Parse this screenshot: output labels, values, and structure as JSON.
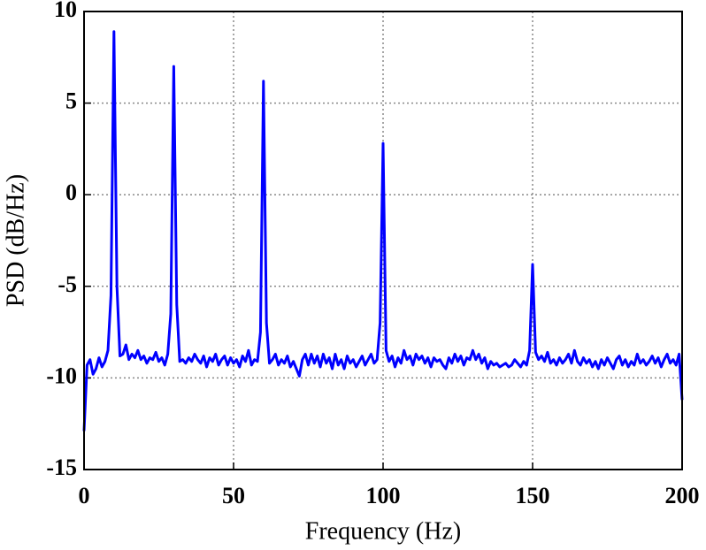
{
  "chart_data": {
    "type": "line",
    "xlabel": "Frequency (Hz)",
    "ylabel": "PSD (dB/Hz)",
    "xlim": [
      0,
      200
    ],
    "xticks": [
      0,
      50,
      100,
      150,
      200
    ],
    "ylim": [
      -15,
      10
    ],
    "yticks": [
      -15,
      -10,
      -5,
      0,
      5,
      10
    ],
    "grid": true,
    "x": [
      0,
      1,
      2,
      3,
      4,
      5,
      6,
      7,
      8,
      9,
      10,
      11,
      12,
      13,
      14,
      15,
      16,
      17,
      18,
      19,
      20,
      21,
      22,
      23,
      24,
      25,
      26,
      27,
      28,
      29,
      30,
      31,
      32,
      33,
      34,
      35,
      36,
      37,
      38,
      39,
      40,
      41,
      42,
      43,
      44,
      45,
      46,
      47,
      48,
      49,
      50,
      51,
      52,
      53,
      54,
      55,
      56,
      57,
      58,
      59,
      60,
      61,
      62,
      63,
      64,
      65,
      66,
      67,
      68,
      69,
      70,
      71,
      72,
      73,
      74,
      75,
      76,
      77,
      78,
      79,
      80,
      81,
      82,
      83,
      84,
      85,
      86,
      87,
      88,
      89,
      90,
      91,
      92,
      93,
      94,
      95,
      96,
      97,
      98,
      99,
      100,
      101,
      102,
      103,
      104,
      105,
      106,
      107,
      108,
      109,
      110,
      111,
      112,
      113,
      114,
      115,
      116,
      117,
      118,
      119,
      120,
      121,
      122,
      123,
      124,
      125,
      126,
      127,
      128,
      129,
      130,
      131,
      132,
      133,
      134,
      135,
      136,
      137,
      138,
      139,
      140,
      141,
      142,
      143,
      144,
      145,
      146,
      147,
      148,
      149,
      150,
      151,
      152,
      153,
      154,
      155,
      156,
      157,
      158,
      159,
      160,
      161,
      162,
      163,
      164,
      165,
      166,
      167,
      168,
      169,
      170,
      171,
      172,
      173,
      174,
      175,
      176,
      177,
      178,
      179,
      180,
      181,
      182,
      183,
      184,
      185,
      186,
      187,
      188,
      189,
      190,
      191,
      192,
      193,
      194,
      195,
      196,
      197,
      198,
      199,
      200
    ],
    "series": [
      {
        "color": "#0000ff",
        "values": [
          -12.9,
          -9.3,
          -9.0,
          -9.8,
          -9.5,
          -8.9,
          -9.4,
          -9.1,
          -8.5,
          -5.5,
          8.9,
          -5.0,
          -8.8,
          -8.7,
          -8.2,
          -9.0,
          -8.7,
          -8.9,
          -8.5,
          -9.0,
          -8.8,
          -9.2,
          -8.9,
          -9.0,
          -8.6,
          -9.1,
          -8.9,
          -9.3,
          -8.7,
          -6.5,
          7.0,
          -6.0,
          -9.1,
          -9.0,
          -9.2,
          -8.9,
          -9.1,
          -8.7,
          -9.0,
          -9.2,
          -8.8,
          -9.4,
          -8.9,
          -9.1,
          -8.7,
          -9.3,
          -9.0,
          -8.8,
          -9.3,
          -8.9,
          -9.2,
          -9.0,
          -9.4,
          -8.8,
          -9.1,
          -8.5,
          -9.3,
          -9.0,
          -9.1,
          -7.5,
          6.2,
          -7.0,
          -9.2,
          -9.0,
          -8.7,
          -9.3,
          -9.0,
          -9.2,
          -8.8,
          -9.4,
          -9.1,
          -9.5,
          -9.9,
          -9.0,
          -8.7,
          -9.3,
          -8.7,
          -9.2,
          -8.8,
          -9.4,
          -8.7,
          -9.2,
          -8.9,
          -9.5,
          -8.7,
          -9.3,
          -9.0,
          -9.5,
          -8.8,
          -9.2,
          -9.0,
          -9.4,
          -9.1,
          -8.8,
          -9.3,
          -9.0,
          -8.7,
          -9.2,
          -9.0,
          -7.0,
          2.8,
          -8.5,
          -9.1,
          -8.8,
          -9.4,
          -8.9,
          -9.2,
          -8.5,
          -9.0,
          -8.8,
          -9.3,
          -8.7,
          -9.0,
          -8.8,
          -9.2,
          -8.9,
          -9.4,
          -8.9,
          -9.1,
          -9.0,
          -9.3,
          -9.5,
          -8.9,
          -9.2,
          -8.7,
          -9.1,
          -8.8,
          -9.3,
          -8.9,
          -9.0,
          -8.5,
          -9.0,
          -8.7,
          -9.2,
          -8.9,
          -9.5,
          -9.1,
          -9.3,
          -9.2,
          -9.4,
          -9.3,
          -9.2,
          -9.4,
          -9.3,
          -9.0,
          -9.2,
          -9.4,
          -9.1,
          -9.3,
          -8.5,
          -3.8,
          -8.6,
          -9.0,
          -8.8,
          -9.1,
          -8.6,
          -9.2,
          -9.0,
          -9.3,
          -8.9,
          -9.2,
          -9.0,
          -8.7,
          -9.2,
          -8.5,
          -9.1,
          -9.3,
          -8.9,
          -9.2,
          -9.0,
          -9.4,
          -9.1,
          -9.5,
          -9.0,
          -9.3,
          -8.9,
          -9.2,
          -9.5,
          -9.0,
          -8.8,
          -9.3,
          -9.0,
          -9.4,
          -9.1,
          -9.3,
          -8.7,
          -9.2,
          -9.0,
          -9.3,
          -9.1,
          -8.8,
          -9.2,
          -8.9,
          -9.4,
          -9.0,
          -8.7,
          -9.2,
          -9.0,
          -9.3,
          -8.7,
          -11.2
        ]
      }
    ]
  }
}
